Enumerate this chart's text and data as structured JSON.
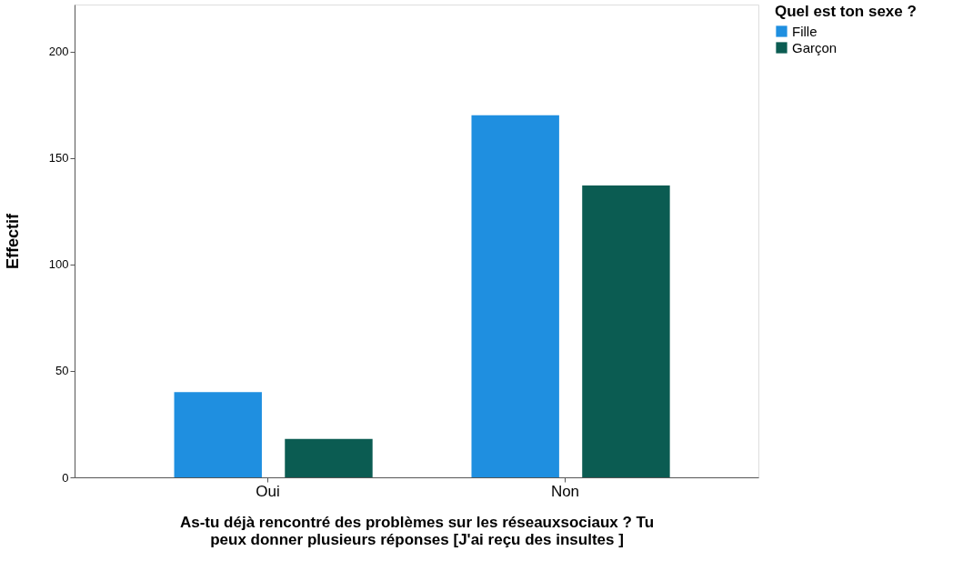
{
  "chart_data": {
    "type": "bar",
    "xlabel": "As-tu déjà rencontré des problèmes sur les réseauxsociaux ?  Tu peux donner plusieurs réponses  [J'ai reçu des insultes ]",
    "ylabel": "Effectif",
    "legend_title": "Quel est ton sexe ?",
    "categories": [
      "Oui",
      "Non"
    ],
    "series": [
      {
        "name": "Fille",
        "color": "#1f8fe0",
        "values": [
          40,
          170
        ]
      },
      {
        "name": "Garçon",
        "color": "#0b5c52",
        "values": [
          18,
          137
        ]
      }
    ],
    "ylim": [
      0,
      222
    ],
    "yticks": [
      0,
      50,
      100,
      150,
      200
    ],
    "grid": false,
    "legend": "top right"
  }
}
